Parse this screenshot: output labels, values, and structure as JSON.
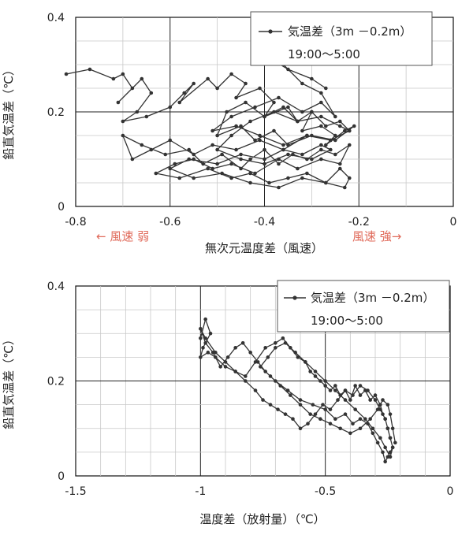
{
  "chart_data": [
    {
      "type": "line",
      "xlabel": "無次元温度差（風速）",
      "ylabel": "鉛直気温差（℃）",
      "xlim": [
        -0.8,
        0
      ],
      "ylim": [
        0,
        0.4
      ],
      "xticks": [
        "-0.8",
        "-0.6",
        "-0.4",
        "-0.2",
        "0"
      ],
      "yticks": [
        "0",
        "0.2",
        "0.4"
      ],
      "grid": true,
      "legend": {
        "series": "気温差（3m －0.2m）",
        "period": "19:00～5:00",
        "placement": "top-right"
      },
      "annotations": {
        "weak_wind": "← 風速 弱",
        "strong_wind": "風速 強→"
      },
      "series": [
        {
          "name": "気温差（3m －0.2m）",
          "color": "#333333",
          "x": [
            -0.82,
            -0.77,
            -0.72,
            -0.7,
            -0.68,
            -0.71,
            -0.66,
            -0.64,
            -0.67,
            -0.7,
            -0.65,
            -0.6,
            -0.57,
            -0.55,
            -0.58,
            -0.52,
            -0.5,
            -0.47,
            -0.44,
            -0.46,
            -0.41,
            -0.38,
            -0.4,
            -0.35,
            -0.33,
            -0.3,
            -0.32,
            -0.28,
            -0.25,
            -0.27,
            -0.23,
            -0.21,
            -0.25,
            -0.3,
            -0.35,
            -0.38,
            -0.42,
            -0.45,
            -0.5,
            -0.48,
            -0.44,
            -0.4,
            -0.36,
            -0.33,
            -0.3,
            -0.27,
            -0.24,
            -0.22,
            -0.26,
            -0.31,
            -0.36,
            -0.41,
            -0.46,
            -0.51,
            -0.55,
            -0.6,
            -0.64,
            -0.68,
            -0.7,
            -0.66,
            -0.61,
            -0.56,
            -0.53,
            -0.49,
            -0.45,
            -0.43,
            -0.4,
            -0.37,
            -0.34,
            -0.31,
            -0.28,
            -0.25,
            -0.22,
            -0.24,
            -0.28,
            -0.33,
            -0.37,
            -0.42,
            -0.47,
            -0.51,
            -0.55,
            -0.59,
            -0.63,
            -0.58,
            -0.52,
            -0.47,
            -0.43,
            -0.39,
            -0.35,
            -0.31,
            -0.27,
            -0.24,
            -0.22,
            -0.23,
            -0.27,
            -0.32,
            -0.37,
            -0.43,
            -0.49,
            -0.55,
            -0.6,
            -0.56,
            -0.5,
            -0.45,
            -0.4,
            -0.36,
            -0.32,
            -0.28,
            -0.26,
            -0.3,
            -0.35,
            -0.4,
            -0.45,
            -0.5,
            -0.47,
            -0.43,
            -0.38,
            -0.33,
            -0.28,
            -0.24,
            -0.22,
            -0.26,
            -0.31,
            -0.36,
            -0.41,
            -0.46,
            -0.51,
            -0.47,
            -0.42,
            -0.37,
            -0.32,
            -0.28,
            -0.25,
            -0.28,
            -0.32,
            -0.36,
            -0.4,
            -0.35,
            -0.3,
            -0.27
          ],
          "y": [
            0.28,
            0.29,
            0.27,
            0.28,
            0.25,
            0.22,
            0.27,
            0.24,
            0.2,
            0.18,
            0.19,
            0.21,
            0.24,
            0.26,
            0.22,
            0.27,
            0.25,
            0.28,
            0.26,
            0.23,
            0.25,
            0.22,
            0.19,
            0.21,
            0.18,
            0.2,
            0.16,
            0.17,
            0.15,
            0.13,
            0.16,
            0.17,
            0.14,
            0.15,
            0.13,
            0.16,
            0.14,
            0.17,
            0.15,
            0.2,
            0.22,
            0.19,
            0.21,
            0.18,
            0.2,
            0.17,
            0.18,
            0.16,
            0.14,
            0.15,
            0.12,
            0.14,
            0.12,
            0.13,
            0.11,
            0.14,
            0.12,
            0.1,
            0.15,
            0.13,
            0.11,
            0.12,
            0.09,
            0.11,
            0.08,
            0.1,
            0.12,
            0.09,
            0.11,
            0.1,
            0.12,
            0.11,
            0.13,
            0.09,
            0.1,
            0.08,
            0.1,
            0.07,
            0.09,
            0.08,
            0.1,
            0.09,
            0.07,
            0.06,
            0.08,
            0.06,
            0.07,
            0.05,
            0.06,
            0.07,
            0.05,
            0.08,
            0.06,
            0.04,
            0.05,
            0.06,
            0.04,
            0.05,
            0.07,
            0.06,
            0.08,
            0.1,
            0.09,
            0.11,
            0.1,
            0.12,
            0.11,
            0.13,
            0.12,
            0.1,
            0.11,
            0.09,
            0.1,
            0.12,
            0.15,
            0.18,
            0.2,
            0.18,
            0.19,
            0.17,
            0.16,
            0.14,
            0.15,
            0.13,
            0.15,
            0.17,
            0.16,
            0.19,
            0.21,
            0.23,
            0.2,
            0.22,
            0.19,
            0.24,
            0.26,
            0.3,
            0.32,
            0.29,
            0.27,
            0.25
          ]
        }
      ]
    },
    {
      "type": "line",
      "xlabel": "温度差（放射量）（℃）",
      "ylabel": "鉛直気温差（℃）",
      "xlim": [
        -1.5,
        0
      ],
      "ylim": [
        0,
        0.4
      ],
      "xticks": [
        "-1.5",
        "-1",
        "-0.5",
        "0"
      ],
      "yticks": [
        "0",
        "0.2",
        "0.4"
      ],
      "grid": true,
      "legend": {
        "series": "気温差（3m －0.2m）",
        "period": "19:00～5:00",
        "placement": "top-right"
      },
      "series": [
        {
          "name": "気温差（3m －0.2m）",
          "color": "#333333",
          "x": [
            -1.0,
            -0.98,
            -0.96,
            -0.99,
            -1.0,
            -0.97,
            -0.94,
            -0.9,
            -0.86,
            -0.82,
            -0.78,
            -0.74,
            -0.7,
            -0.67,
            -0.64,
            -0.61,
            -0.58,
            -0.56,
            -0.54,
            -0.52,
            -0.5,
            -0.48,
            -0.46,
            -0.44,
            -0.42,
            -0.4,
            -0.38,
            -0.36,
            -0.34,
            -0.32,
            -0.3,
            -0.28,
            -0.27,
            -0.26,
            -0.25,
            -0.24,
            -0.23,
            -0.24,
            -0.25,
            -0.26,
            -0.27,
            -0.29,
            -0.31,
            -0.33,
            -0.36,
            -0.39,
            -0.42,
            -0.46,
            -0.5,
            -0.55,
            -0.6,
            -0.65,
            -0.7,
            -0.74,
            -0.77,
            -0.8,
            -0.83,
            -0.86,
            -0.89,
            -0.92,
            -0.95,
            -0.98,
            -1.0,
            -0.98,
            -0.94,
            -0.9,
            -0.86,
            -0.82,
            -0.78,
            -0.75,
            -0.72,
            -0.69,
            -0.66,
            -0.63,
            -0.6,
            -0.57,
            -0.54,
            -0.51,
            -0.48,
            -0.45,
            -0.42,
            -0.39,
            -0.36,
            -0.33,
            -0.3,
            -0.28,
            -0.26,
            -0.25,
            -0.24,
            -0.23,
            -0.24,
            -0.26,
            -0.28,
            -0.31,
            -0.34,
            -0.38,
            -0.42,
            -0.46,
            -0.5,
            -0.54,
            -0.58,
            -0.62,
            -0.66,
            -0.7,
            -0.73,
            -0.76,
            -0.72,
            -0.68,
            -0.64,
            -0.6,
            -0.56,
            -0.52,
            -0.48,
            -0.44,
            -0.4,
            -0.36,
            -0.32,
            -0.29,
            -0.27,
            -0.25,
            -0.24,
            -0.23,
            -0.22
          ],
          "y": [
            0.29,
            0.33,
            0.3,
            0.27,
            0.25,
            0.26,
            0.25,
            0.23,
            0.22,
            0.21,
            0.24,
            0.27,
            0.28,
            0.29,
            0.27,
            0.25,
            0.24,
            0.22,
            0.21,
            0.2,
            0.19,
            0.18,
            0.19,
            0.17,
            0.18,
            0.16,
            0.19,
            0.17,
            0.18,
            0.16,
            0.17,
            0.15,
            0.13,
            0.12,
            0.1,
            0.08,
            0.06,
            0.05,
            0.04,
            0.03,
            0.05,
            0.07,
            0.09,
            0.11,
            0.12,
            0.11,
            0.13,
            0.12,
            0.14,
            0.15,
            0.16,
            0.18,
            0.2,
            0.22,
            0.24,
            0.26,
            0.28,
            0.27,
            0.25,
            0.23,
            0.26,
            0.28,
            0.31,
            0.29,
            0.26,
            0.24,
            0.22,
            0.2,
            0.18,
            0.16,
            0.15,
            0.14,
            0.13,
            0.12,
            0.1,
            0.11,
            0.13,
            0.15,
            0.14,
            0.16,
            0.18,
            0.17,
            0.19,
            0.18,
            0.16,
            0.14,
            0.12,
            0.1,
            0.08,
            0.06,
            0.04,
            0.06,
            0.08,
            0.1,
            0.12,
            0.14,
            0.16,
            0.18,
            0.2,
            0.22,
            0.24,
            0.26,
            0.28,
            0.27,
            0.25,
            0.23,
            0.21,
            0.19,
            0.17,
            0.15,
            0.13,
            0.12,
            0.11,
            0.1,
            0.09,
            0.1,
            0.12,
            0.14,
            0.16,
            0.15,
            0.13,
            0.1,
            0.07
          ]
        }
      ]
    }
  ]
}
